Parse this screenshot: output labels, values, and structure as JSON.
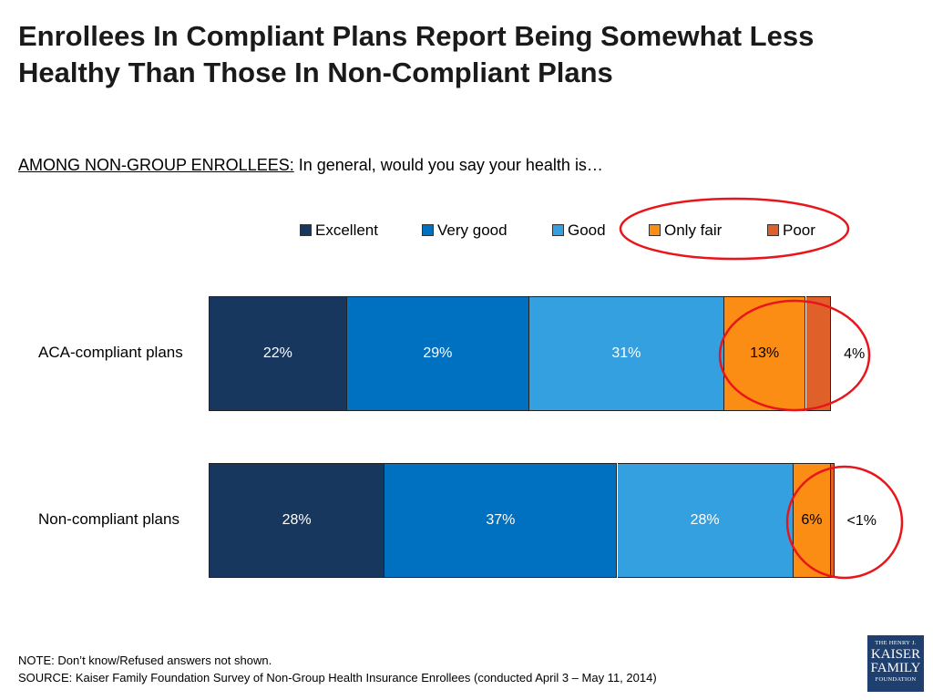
{
  "header": {
    "title": "Enrollees In Compliant Plans Report Being Somewhat Less Healthy Than Those In Non-Compliant Plans"
  },
  "question": {
    "lead": "AMONG NON-GROUP ENROLLEES:",
    "text": "In general, would you say your health is…"
  },
  "chart_data": {
    "type": "bar",
    "orientation": "horizontal",
    "stacked": true,
    "units": "percent",
    "xlim": [
      0,
      100
    ],
    "categories": [
      "ACA-compliant plans",
      "Non-compliant plans"
    ],
    "series": [
      {
        "name": "Excellent",
        "color": "#17375e",
        "values": [
          22,
          28
        ],
        "labels": [
          "22%",
          "28%"
        ]
      },
      {
        "name": "Very good",
        "color": "#0070c0",
        "values": [
          29,
          37
        ],
        "labels": [
          "29%",
          "37%"
        ]
      },
      {
        "name": "Good",
        "color": "#35a0e0",
        "values": [
          31,
          28
        ],
        "labels": [
          "31%",
          "28%"
        ]
      },
      {
        "name": "Only fair",
        "color": "#fb8c14",
        "values": [
          13,
          6
        ],
        "labels": [
          "13%",
          "6%"
        ]
      },
      {
        "name": "Poor",
        "color": "#e0602a",
        "values": [
          4,
          0.5
        ],
        "labels": [
          "4%",
          "<1%"
        ]
      }
    ],
    "legend_position": "top",
    "annotations": "red ovals around 'Only fair' and 'Poor' legend entries and segments"
  },
  "notes": {
    "note": "NOTE: Don’t know/Refused answers not shown.",
    "source": "SOURCE: Kaiser Family Foundation Survey of Non-Group Health Insurance Enrollees  (conducted April 3 – May 11, 2014)"
  },
  "logo": {
    "line1": "THE HENRY J.",
    "line2": "KAISER",
    "line3": "FAMILY",
    "line4": "FOUNDATION"
  },
  "colors": {
    "highlight": "#e8151b"
  }
}
